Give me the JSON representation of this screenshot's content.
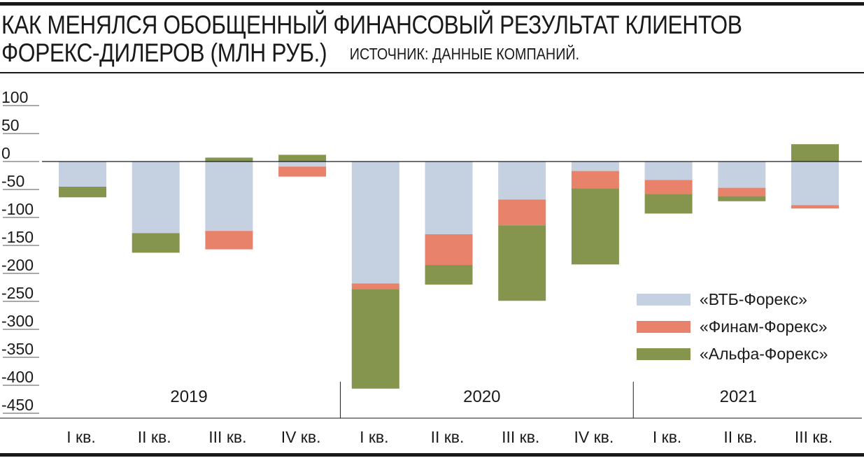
{
  "header": {
    "title_line1": "КАК МЕНЯЛСЯ ОБОБЩЕННЫЙ ФИНАНСОВЫЙ РЕЗУЛЬТАТ КЛИЕНТОВ",
    "title_line2": "ФОРЕКС-ДИЛЕРОВ (МЛН РУБ.)",
    "source": "ИСТОЧНИК: ДАННЫЕ КОМПАНИЙ."
  },
  "chart_data": {
    "type": "bar",
    "stacked": true,
    "title": "КАК МЕНЯЛСЯ ОБОБЩЕННЫЙ ФИНАНСОВЫЙ РЕЗУЛЬТАТ КЛИЕНТОВ ФОРЕКС-ДИЛЕРОВ (МЛН РУБ.)",
    "source": "ИСТОЧНИК: ДАННЫЕ КОМПАНИЙ.",
    "categories": [
      "I кв.",
      "II кв.",
      "III кв.",
      "IV кв.",
      "I кв.",
      "II кв.",
      "III кв.",
      "IV кв.",
      "I кв.",
      "II кв.",
      "III кв."
    ],
    "groups": [
      {
        "label": "2019",
        "start": 0,
        "end": 3
      },
      {
        "label": "2020",
        "start": 4,
        "end": 7
      },
      {
        "label": "2021",
        "start": 8,
        "end": 10
      }
    ],
    "series": [
      {
        "name": "«ВТБ-Форекс»",
        "color": "#c5d0e0",
        "values": [
          -45,
          -128,
          -124,
          -9,
          -218,
          -130,
          -68,
          -17,
          -33,
          -47,
          -78
        ]
      },
      {
        "name": "«Финам-Форекс»",
        "color": "#e8826a",
        "values": [
          0,
          0,
          -33,
          -18,
          -10,
          -55,
          -46,
          -31,
          -25,
          -15,
          -6
        ]
      },
      {
        "name": "«Альфа-Форекс»",
        "color": "#85954e",
        "values": [
          -19,
          -35,
          7,
          12,
          -178,
          -35,
          -135,
          -136,
          -35,
          -9,
          31
        ]
      }
    ],
    "yticks": [
      100,
      50,
      0,
      -50,
      -100,
      -150,
      -200,
      -250,
      -300,
      -350,
      -400,
      -450
    ],
    "ytick_labels": [
      "100",
      "50",
      "0",
      "-50",
      "-100",
      "-150",
      "-200",
      "-250",
      "-300",
      "-350",
      "-400",
      "-450"
    ],
    "ylim": [
      -450,
      100
    ],
    "legend_position": "bottom-right"
  }
}
